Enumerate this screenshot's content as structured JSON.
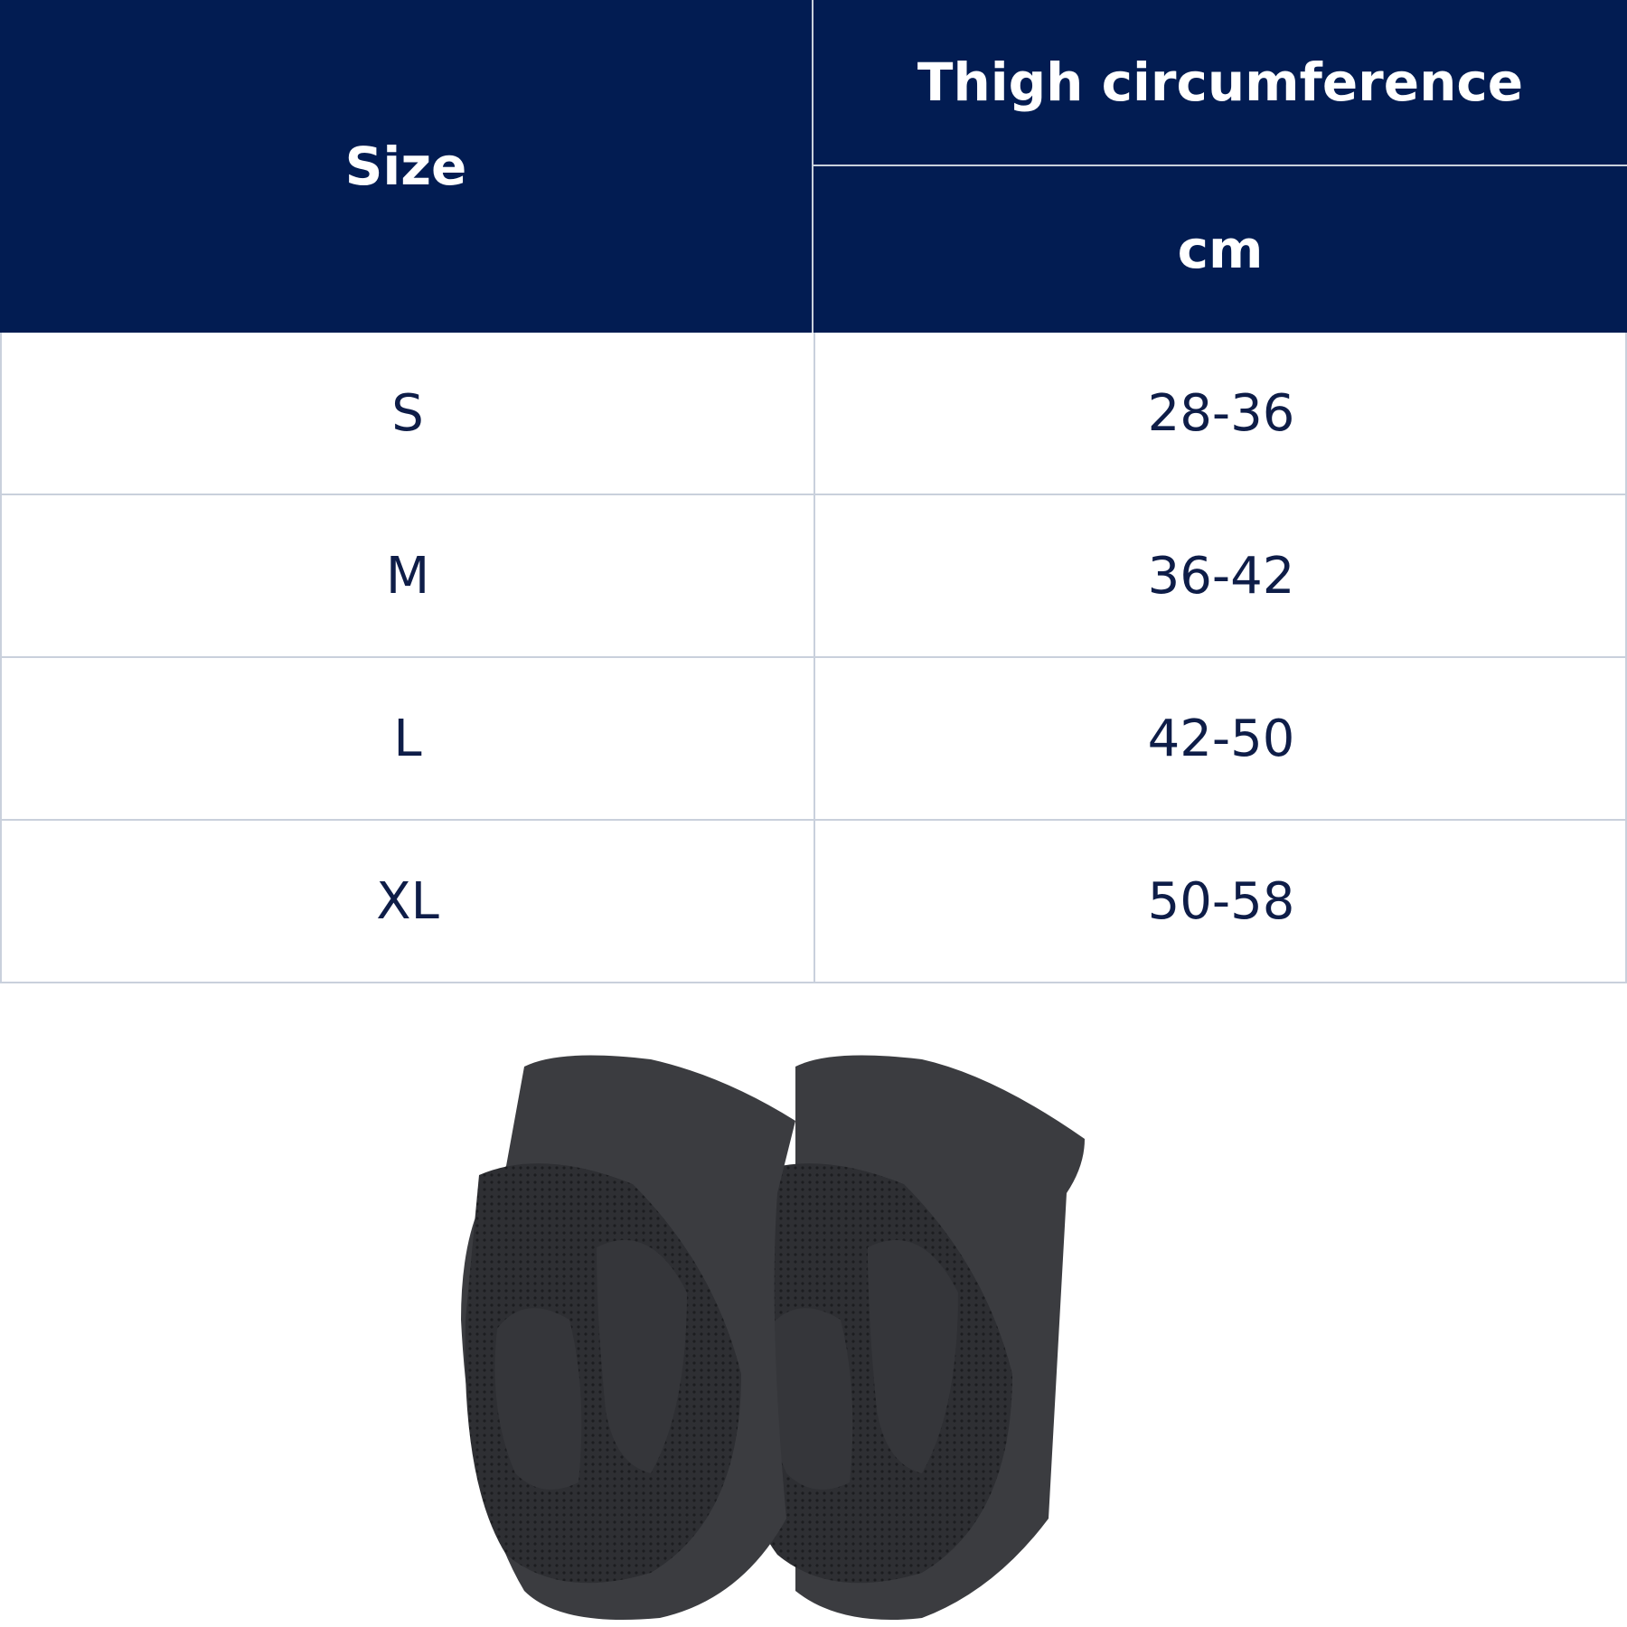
{
  "table": {
    "header": {
      "size": "Size",
      "measure": "Thigh circumference",
      "unit": "cm"
    },
    "rows": [
      {
        "size": "S",
        "range": "28-36"
      },
      {
        "size": "M",
        "range": "36-42"
      },
      {
        "size": "L",
        "range": "42-50"
      },
      {
        "size": "XL",
        "range": "50-58"
      }
    ]
  },
  "colors": {
    "header_bg": "#021c52",
    "text": "#0e1d48",
    "border": "#c9d0dc"
  },
  "image": {
    "subject": "knee-pads-pair"
  }
}
